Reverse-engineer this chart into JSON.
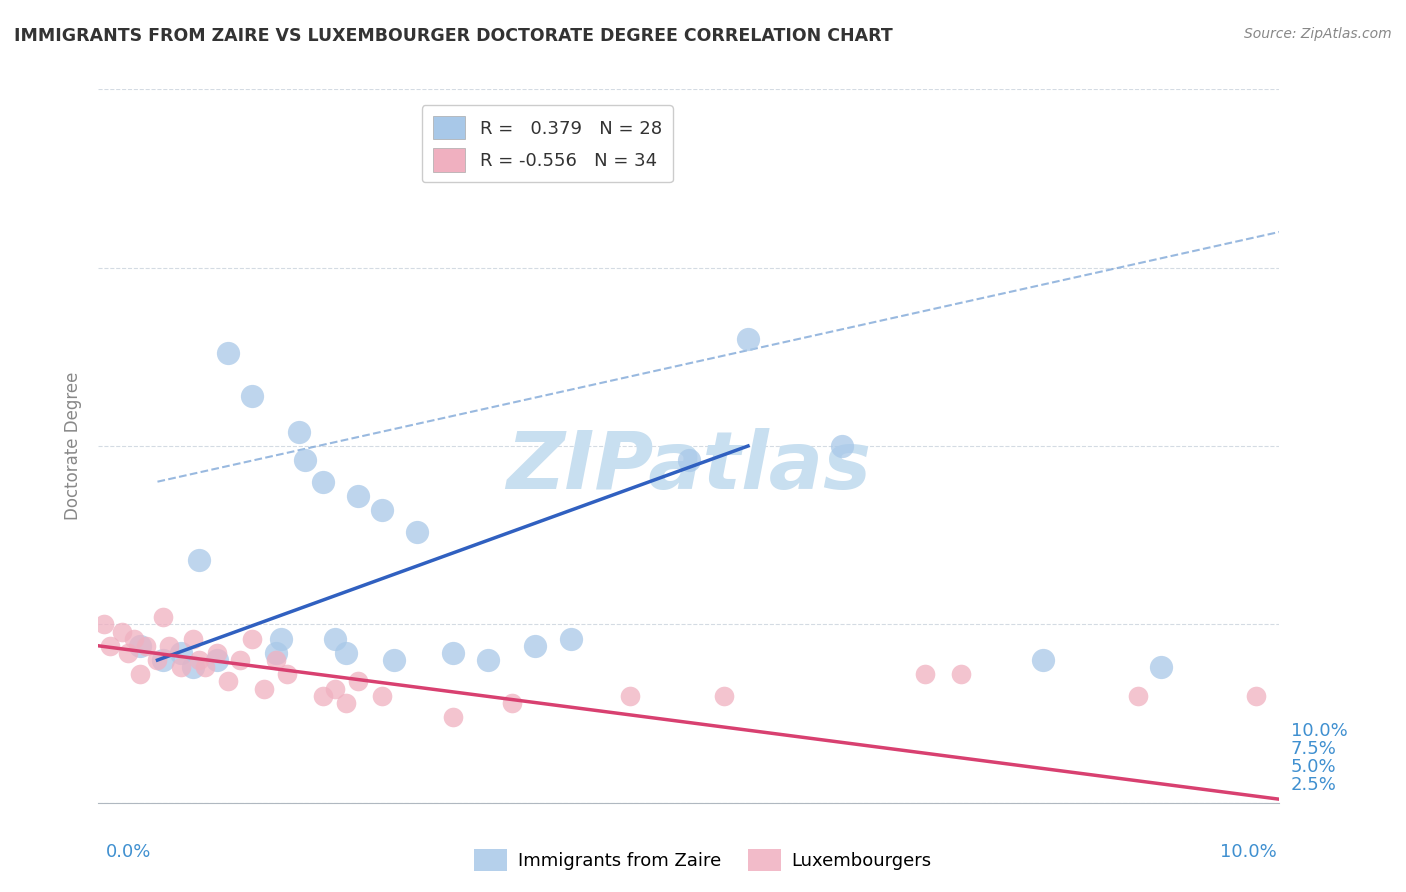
{
  "title": "IMMIGRANTS FROM ZAIRE VS LUXEMBOURGER DOCTORATE DEGREE CORRELATION CHART",
  "source_text": "Source: ZipAtlas.com",
  "ylabel": "Doctorate Degree",
  "ytick_vals": [
    0.0,
    2.5,
    5.0,
    7.5,
    10.0
  ],
  "ytick_labels": [
    "",
    "2.5%",
    "5.0%",
    "7.5%",
    "10.0%"
  ],
  "xlim": [
    0.0,
    10.0
  ],
  "ylim": [
    0.0,
    10.0
  ],
  "legend_r_blue": "0.379",
  "legend_n_blue": "28",
  "legend_r_pink": "-0.556",
  "legend_n_pink": "34",
  "blue_color": "#a8c8e8",
  "pink_color": "#f0b0c0",
  "blue_line_color": "#3060c0",
  "pink_line_color": "#d84070",
  "dash_line_color": "#80a8d8",
  "tick_label_color": "#4090d0",
  "watermark_color": "#c8dff0",
  "blue_x": [
    0.35,
    0.55,
    0.7,
    0.8,
    0.85,
    1.0,
    1.1,
    1.3,
    1.5,
    1.55,
    1.7,
    1.75,
    1.9,
    2.0,
    2.1,
    2.2,
    2.4,
    2.5,
    2.7,
    3.0,
    3.3,
    3.7,
    4.0,
    5.0,
    5.5,
    6.3,
    8.0,
    9.0
  ],
  "blue_y": [
    2.2,
    2.0,
    2.1,
    1.9,
    3.4,
    2.0,
    6.3,
    5.7,
    2.1,
    2.3,
    5.2,
    4.8,
    4.5,
    2.3,
    2.1,
    4.3,
    4.1,
    2.0,
    3.8,
    2.1,
    2.0,
    2.2,
    2.3,
    4.8,
    6.5,
    5.0,
    2.0,
    1.9
  ],
  "pink_x": [
    0.05,
    0.1,
    0.2,
    0.25,
    0.3,
    0.35,
    0.4,
    0.5,
    0.55,
    0.6,
    0.7,
    0.8,
    0.85,
    0.9,
    1.0,
    1.1,
    1.2,
    1.3,
    1.4,
    1.5,
    1.6,
    1.9,
    2.0,
    2.1,
    2.2,
    2.4,
    3.0,
    3.5,
    4.5,
    5.3,
    7.0,
    7.3,
    8.8,
    9.8
  ],
  "pink_y": [
    2.5,
    2.2,
    2.4,
    2.1,
    2.3,
    1.8,
    2.2,
    2.0,
    2.6,
    2.2,
    1.9,
    2.3,
    2.0,
    1.9,
    2.1,
    1.7,
    2.0,
    2.3,
    1.6,
    2.0,
    1.8,
    1.5,
    1.6,
    1.4,
    1.7,
    1.5,
    1.2,
    1.4,
    1.5,
    1.5,
    1.8,
    1.8,
    1.5,
    1.5
  ],
  "blue_line_x": [
    0.5,
    5.5
  ],
  "blue_line_y": [
    2.0,
    5.0
  ],
  "pink_line_x": [
    0.0,
    10.0
  ],
  "pink_line_y": [
    2.2,
    0.05
  ],
  "dash_line_x": [
    0.5,
    10.0
  ],
  "dash_line_y": [
    4.5,
    8.0
  ]
}
